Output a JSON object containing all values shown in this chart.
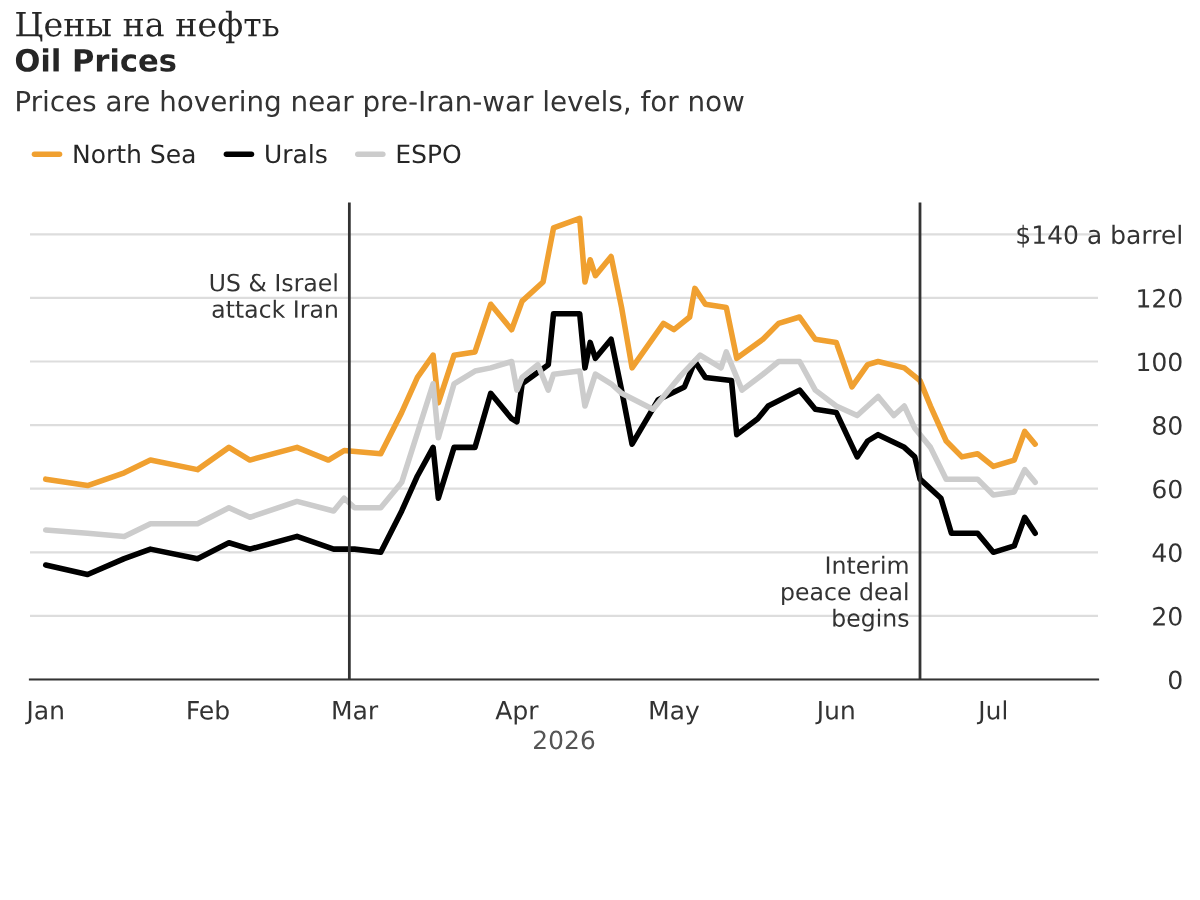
{
  "chart_data": {
    "type": "line",
    "title": "Oil Prices",
    "subtitle": "Prices are hovering near pre-Iran-war levels, for now",
    "xlabel": "2026",
    "annotations": [
      "Цены на нефть"
    ],
    "xlim": [
      "2025-12-29",
      "2026-07-21"
    ],
    "xticks": [
      {
        "value": "2026-01-01",
        "label": "Jan"
      },
      {
        "value": "2026-02-01",
        "label": "Feb"
      },
      {
        "value": "2026-03-01",
        "label": "Mar"
      },
      {
        "value": "2026-04-01",
        "label": "Apr"
      },
      {
        "value": "2026-05-01",
        "label": "May"
      },
      {
        "value": "2026-06-01",
        "label": "Jun"
      },
      {
        "value": "2026-07-01",
        "label": "Jul"
      }
    ],
    "ylim": [
      0,
      150
    ],
    "yticks": [
      0,
      20,
      40,
      60,
      80,
      100,
      120,
      {
        "value": 140,
        "label": "$140 a barrel"
      }
    ],
    "grid": "y",
    "legend": "top left",
    "ref_lines": [
      {
        "axis": "x",
        "value": "2026-02-28",
        "label": "US & Israel\nattack Iran",
        "color": "#333333"
      },
      {
        "axis": "x",
        "value": "2026-06-17",
        "label": "Interim\npeace deal\nbegins",
        "color": "#333333"
      }
    ],
    "series": [
      {
        "name": "North Sea",
        "color": "#f0a030",
        "x": [
          "2026-01-01",
          "2026-01-09",
          "2026-01-16",
          "2026-01-21",
          "2026-01-30",
          "2026-02-05",
          "2026-02-09",
          "2026-02-18",
          "2026-02-24",
          "2026-02-27",
          "2026-03-06",
          "2026-03-10",
          "2026-03-13",
          "2026-03-16",
          "2026-03-17",
          "2026-03-20",
          "2026-03-24",
          "2026-03-27",
          "2026-03-31",
          "2026-04-02",
          "2026-04-06",
          "2026-04-08",
          "2026-04-13",
          "2026-04-14",
          "2026-04-15",
          "2026-04-16",
          "2026-04-19",
          "2026-04-21",
          "2026-04-23",
          "2026-04-29",
          "2026-05-01",
          "2026-05-04",
          "2026-05-05",
          "2026-05-07",
          "2026-05-11",
          "2026-05-13",
          "2026-05-18",
          "2026-05-21",
          "2026-05-25",
          "2026-05-28",
          "2026-06-01",
          "2026-06-04",
          "2026-06-07",
          "2026-06-09",
          "2026-06-14",
          "2026-06-17",
          "2026-06-19",
          "2026-06-22",
          "2026-06-25",
          "2026-06-28",
          "2026-07-01",
          "2026-07-05",
          "2026-07-07",
          "2026-07-09"
        ],
        "values": [
          63,
          61,
          65,
          69,
          66,
          73,
          69,
          73,
          69,
          72,
          71,
          84,
          95,
          102,
          87,
          102,
          103,
          118,
          110,
          119,
          125,
          142,
          145,
          125,
          132,
          127,
          133,
          117,
          98,
          112,
          110,
          114,
          123,
          118,
          117,
          101,
          107,
          112,
          114,
          107,
          106,
          92,
          99,
          100,
          98,
          94,
          86,
          75,
          70,
          71,
          67,
          69,
          78,
          74
        ]
      },
      {
        "name": "Urals",
        "color": "#000000",
        "x": [
          "2026-01-01",
          "2026-01-09",
          "2026-01-16",
          "2026-01-21",
          "2026-01-30",
          "2026-02-05",
          "2026-02-09",
          "2026-02-18",
          "2026-02-25",
          "2026-03-01",
          "2026-03-06",
          "2026-03-10",
          "2026-03-13",
          "2026-03-16",
          "2026-03-17",
          "2026-03-20",
          "2026-03-24",
          "2026-03-27",
          "2026-03-31",
          "2026-04-01",
          "2026-04-02",
          "2026-04-07",
          "2026-04-08",
          "2026-04-13",
          "2026-04-14",
          "2026-04-15",
          "2026-04-16",
          "2026-04-19",
          "2026-04-21",
          "2026-04-23",
          "2026-04-28",
          "2026-05-03",
          "2026-05-05",
          "2026-05-07",
          "2026-05-12",
          "2026-05-13",
          "2026-05-17",
          "2026-05-19",
          "2026-05-25",
          "2026-05-28",
          "2026-06-01",
          "2026-06-05",
          "2026-06-07",
          "2026-06-09",
          "2026-06-14",
          "2026-06-16",
          "2026-06-17",
          "2026-06-21",
          "2026-06-23",
          "2026-06-28",
          "2026-07-01",
          "2026-07-05",
          "2026-07-07",
          "2026-07-09"
        ],
        "values": [
          36,
          33,
          38,
          41,
          38,
          43,
          41,
          45,
          41,
          41,
          40,
          53,
          64,
          73,
          57,
          73,
          73,
          90,
          82,
          81,
          93,
          99,
          115,
          115,
          98,
          106,
          101,
          107,
          91,
          74,
          88,
          92,
          100,
          95,
          94,
          77,
          82,
          86,
          91,
          85,
          84,
          70,
          75,
          77,
          73,
          70,
          63,
          57,
          46,
          46,
          40,
          42,
          51,
          46
        ]
      },
      {
        "name": "ESPO",
        "color": "#cccccc",
        "x": [
          "2026-01-01",
          "2026-01-09",
          "2026-01-16",
          "2026-01-21",
          "2026-01-30",
          "2026-02-05",
          "2026-02-09",
          "2026-02-18",
          "2026-02-25",
          "2026-02-27",
          "2026-03-01",
          "2026-03-06",
          "2026-03-10",
          "2026-03-16",
          "2026-03-17",
          "2026-03-20",
          "2026-03-24",
          "2026-03-27",
          "2026-03-31",
          "2026-04-01",
          "2026-04-02",
          "2026-04-05",
          "2026-04-07",
          "2026-04-08",
          "2026-04-13",
          "2026-04-14",
          "2026-04-16",
          "2026-04-19",
          "2026-04-21",
          "2026-04-27",
          "2026-05-02",
          "2026-05-06",
          "2026-05-10",
          "2026-05-11",
          "2026-05-14",
          "2026-05-18",
          "2026-05-21",
          "2026-05-25",
          "2026-05-28",
          "2026-06-01",
          "2026-06-05",
          "2026-06-09",
          "2026-06-12",
          "2026-06-14",
          "2026-06-16",
          "2026-06-19",
          "2026-06-22",
          "2026-06-28",
          "2026-07-01",
          "2026-07-05",
          "2026-07-07",
          "2026-07-09"
        ],
        "values": [
          47,
          46,
          45,
          49,
          49,
          54,
          51,
          56,
          53,
          57,
          54,
          54,
          62,
          93,
          76,
          93,
          97,
          98,
          100,
          91,
          95,
          99,
          91,
          96,
          97,
          86,
          96,
          93,
          90,
          85,
          95,
          102,
          98,
          103,
          91,
          96,
          100,
          100,
          91,
          86,
          83,
          89,
          83,
          86,
          79,
          73,
          63,
          63,
          58,
          59,
          66,
          62
        ]
      }
    ]
  }
}
